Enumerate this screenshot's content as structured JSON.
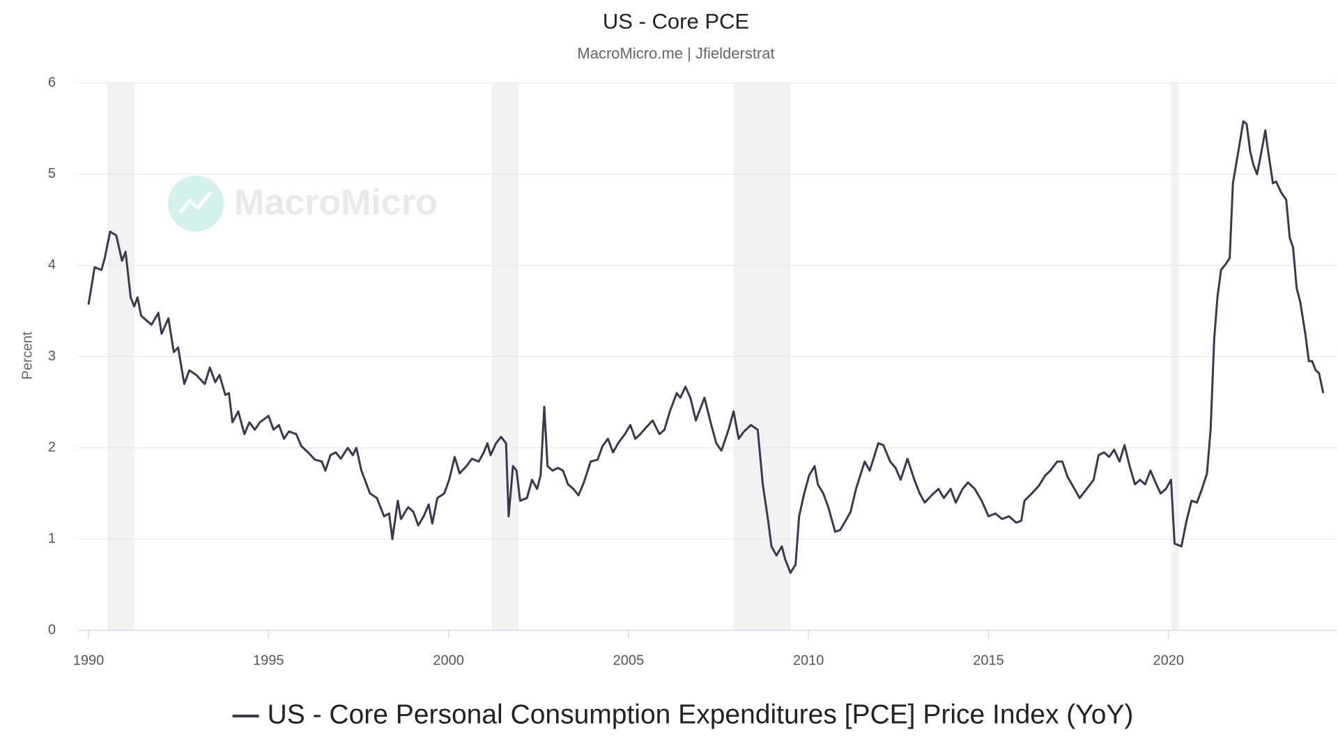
{
  "chart_data": {
    "type": "line",
    "title": "US - Core PCE",
    "subtitle": "MacroMicro.me | Jfielderstrat",
    "y_label": "Percent",
    "watermark": "MacroMicro",
    "xlim": [
      1989.69,
      2024.67
    ],
    "xticks": [
      1990,
      1995,
      2000,
      2005,
      2010,
      2015,
      2020
    ],
    "ylim": [
      0,
      6
    ],
    "yticks": [
      0,
      1,
      2,
      3,
      4,
      5,
      6
    ],
    "grid": true,
    "legend": "bottom",
    "recessions": [
      [
        1990.53,
        1991.27
      ],
      [
        2001.2,
        2001.94
      ],
      [
        2007.92,
        2009.5
      ],
      [
        2020.07,
        2020.29
      ]
    ],
    "recession_color": "#f2f2f2",
    "x": [
      1990.0,
      1990.17,
      1990.36,
      1990.45,
      1990.6,
      1990.77,
      1990.93,
      1991.03,
      1991.17,
      1991.27,
      1991.36,
      1991.46,
      1991.6,
      1991.75,
      1991.94,
      1992.03,
      1992.22,
      1992.37,
      1992.49,
      1992.66,
      1992.8,
      1992.99,
      1993.23,
      1993.37,
      1993.52,
      1993.64,
      1993.8,
      1993.9,
      1994.0,
      1994.16,
      1994.33,
      1994.47,
      1994.62,
      1994.76,
      1995.0,
      1995.14,
      1995.29,
      1995.43,
      1995.57,
      1995.77,
      1995.91,
      1996.1,
      1996.29,
      1996.48,
      1996.58,
      1996.72,
      1996.87,
      1997.01,
      1997.2,
      1997.34,
      1997.44,
      1997.58,
      1997.82,
      1998.01,
      1998.21,
      1998.35,
      1998.44,
      1998.59,
      1998.68,
      1998.88,
      1999.02,
      1999.16,
      1999.31,
      1999.45,
      1999.55,
      1999.69,
      1999.88,
      2000.02,
      2000.17,
      2000.31,
      2000.5,
      2000.65,
      2000.84,
      2000.98,
      2001.08,
      2001.17,
      2001.32,
      2001.46,
      2001.6,
      2001.67,
      2001.79,
      2001.89,
      2001.99,
      2002.18,
      2002.32,
      2002.46,
      2002.56,
      2002.66,
      2002.75,
      2002.89,
      2003.04,
      2003.18,
      2003.32,
      2003.47,
      2003.61,
      2003.76,
      2003.95,
      2004.14,
      2004.28,
      2004.43,
      2004.57,
      2004.71,
      2004.9,
      2005.05,
      2005.19,
      2005.33,
      2005.48,
      2005.67,
      2005.86,
      2006.0,
      2006.15,
      2006.34,
      2006.44,
      2006.58,
      2006.72,
      2006.87,
      2007.11,
      2007.3,
      2007.44,
      2007.58,
      2007.78,
      2007.92,
      2008.06,
      2008.21,
      2008.4,
      2008.59,
      2008.73,
      2008.88,
      2008.97,
      2009.11,
      2009.26,
      2009.35,
      2009.5,
      2009.64,
      2009.74,
      2009.88,
      2010.02,
      2010.17,
      2010.26,
      2010.41,
      2010.55,
      2010.74,
      2010.88,
      2011.03,
      2011.17,
      2011.32,
      2011.56,
      2011.7,
      2011.94,
      2012.08,
      2012.27,
      2012.42,
      2012.56,
      2012.75,
      2012.94,
      2013.09,
      2013.23,
      2013.42,
      2013.61,
      2013.76,
      2013.95,
      2014.09,
      2014.28,
      2014.43,
      2014.62,
      2014.81,
      2015.0,
      2015.19,
      2015.38,
      2015.57,
      2015.77,
      2015.91,
      2016.0,
      2016.2,
      2016.39,
      2016.58,
      2016.72,
      2016.91,
      2017.05,
      2017.2,
      2017.39,
      2017.53,
      2017.73,
      2017.92,
      2018.06,
      2018.21,
      2018.35,
      2018.49,
      2018.64,
      2018.78,
      2018.92,
      2019.07,
      2019.21,
      2019.35,
      2019.5,
      2019.64,
      2019.78,
      2019.93,
      2020.07,
      2020.17,
      2020.36,
      2020.5,
      2020.64,
      2020.79,
      2020.93,
      2021.07,
      2021.17,
      2021.27,
      2021.36,
      2021.46,
      2021.6,
      2021.7,
      2021.79,
      2021.94,
      2022.08,
      2022.17,
      2022.27,
      2022.36,
      2022.46,
      2022.56,
      2022.69,
      2022.75,
      2022.9,
      2022.99,
      2023.13,
      2023.27,
      2023.37,
      2023.46,
      2023.56,
      2023.66,
      2023.8,
      2023.9,
      2023.99,
      2024.09,
      2024.18,
      2024.3
    ],
    "series": [
      {
        "name": "US - Core Personal Consumption Expenditures [PCE] Price Index (YoY)",
        "color": "#363a4c",
        "values": [
          3.57,
          3.98,
          3.95,
          4.08,
          4.37,
          4.33,
          4.05,
          4.15,
          3.65,
          3.55,
          3.65,
          3.45,
          3.4,
          3.35,
          3.48,
          3.25,
          3.42,
          3.05,
          3.1,
          2.7,
          2.85,
          2.8,
          2.7,
          2.88,
          2.72,
          2.8,
          2.58,
          2.6,
          2.28,
          2.4,
          2.15,
          2.28,
          2.2,
          2.28,
          2.35,
          2.2,
          2.25,
          2.1,
          2.18,
          2.15,
          2.02,
          1.95,
          1.87,
          1.85,
          1.75,
          1.92,
          1.95,
          1.88,
          2.0,
          1.92,
          2.0,
          1.75,
          1.5,
          1.45,
          1.25,
          1.28,
          1.0,
          1.42,
          1.22,
          1.35,
          1.3,
          1.15,
          1.25,
          1.38,
          1.17,
          1.45,
          1.5,
          1.65,
          1.9,
          1.72,
          1.8,
          1.88,
          1.85,
          1.95,
          2.05,
          1.92,
          2.05,
          2.12,
          2.05,
          1.25,
          1.8,
          1.75,
          1.42,
          1.45,
          1.65,
          1.55,
          1.7,
          2.45,
          1.8,
          1.75,
          1.78,
          1.75,
          1.6,
          1.55,
          1.48,
          1.62,
          1.85,
          1.87,
          2.02,
          2.1,
          1.95,
          2.05,
          2.15,
          2.25,
          2.1,
          2.15,
          2.22,
          2.3,
          2.15,
          2.2,
          2.4,
          2.6,
          2.55,
          2.67,
          2.55,
          2.3,
          2.55,
          2.25,
          2.05,
          1.97,
          2.2,
          2.4,
          2.1,
          2.18,
          2.25,
          2.2,
          1.6,
          1.2,
          0.92,
          0.82,
          0.92,
          0.78,
          0.63,
          0.72,
          1.25,
          1.5,
          1.7,
          1.8,
          1.6,
          1.5,
          1.35,
          1.08,
          1.1,
          1.2,
          1.3,
          1.55,
          1.85,
          1.75,
          2.05,
          2.03,
          1.85,
          1.78,
          1.65,
          1.88,
          1.65,
          1.5,
          1.4,
          1.48,
          1.55,
          1.45,
          1.55,
          1.4,
          1.55,
          1.62,
          1.55,
          1.42,
          1.25,
          1.28,
          1.22,
          1.25,
          1.18,
          1.2,
          1.42,
          1.5,
          1.58,
          1.7,
          1.75,
          1.85,
          1.85,
          1.68,
          1.55,
          1.45,
          1.55,
          1.65,
          1.92,
          1.95,
          1.9,
          1.98,
          1.85,
          2.03,
          1.8,
          1.6,
          1.65,
          1.6,
          1.75,
          1.62,
          1.5,
          1.55,
          1.65,
          0.95,
          0.92,
          1.2,
          1.42,
          1.4,
          1.55,
          1.72,
          2.2,
          3.2,
          3.65,
          3.95,
          4.02,
          4.08,
          4.9,
          5.25,
          5.58,
          5.55,
          5.25,
          5.1,
          5.0,
          5.2,
          5.48,
          5.3,
          4.9,
          4.92,
          4.8,
          4.72,
          4.3,
          4.2,
          3.75,
          3.6,
          3.25,
          2.95,
          2.95,
          2.85,
          2.82,
          2.6
        ]
      }
    ]
  }
}
